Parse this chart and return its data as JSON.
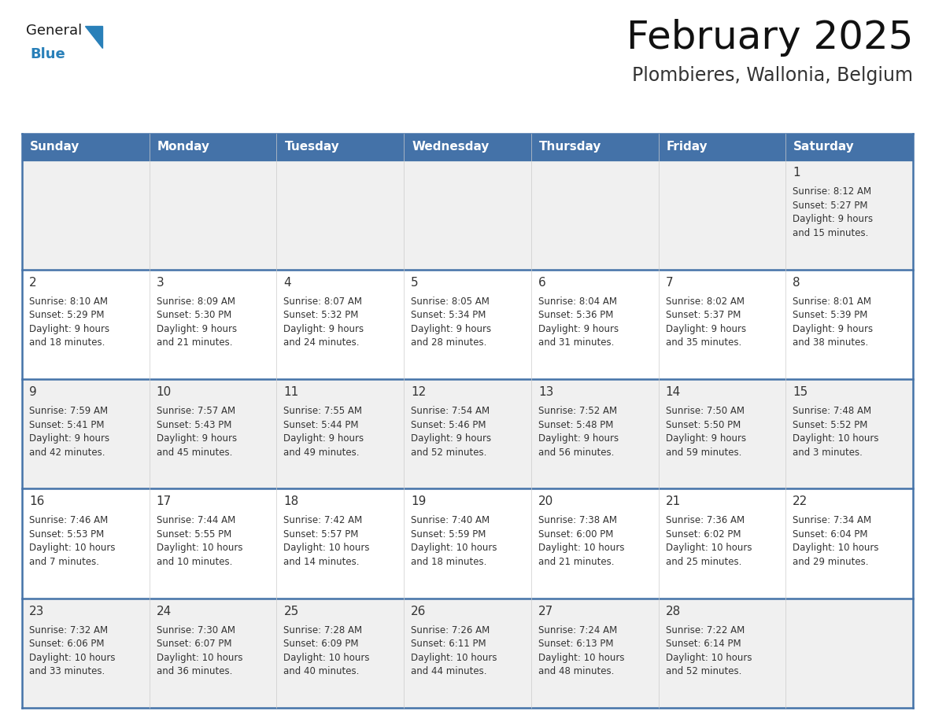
{
  "title": "February 2025",
  "subtitle": "Plombieres, Wallonia, Belgium",
  "header_color": "#4472A8",
  "header_text_color": "#FFFFFF",
  "day_names": [
    "Sunday",
    "Monday",
    "Tuesday",
    "Wednesday",
    "Thursday",
    "Friday",
    "Saturday"
  ],
  "background_color": "#FFFFFF",
  "cell_bg_even": "#F0F0F0",
  "cell_bg_odd": "#FFFFFF",
  "border_color": "#4472A8",
  "thin_line_color": "#4472A8",
  "text_color": "#333333",
  "days": [
    {
      "day": 1,
      "col": 6,
      "row": 0,
      "sunrise": "8:12 AM",
      "sunset": "5:27 PM",
      "daylight": "9 hours\nand 15 minutes."
    },
    {
      "day": 2,
      "col": 0,
      "row": 1,
      "sunrise": "8:10 AM",
      "sunset": "5:29 PM",
      "daylight": "9 hours\nand 18 minutes."
    },
    {
      "day": 3,
      "col": 1,
      "row": 1,
      "sunrise": "8:09 AM",
      "sunset": "5:30 PM",
      "daylight": "9 hours\nand 21 minutes."
    },
    {
      "day": 4,
      "col": 2,
      "row": 1,
      "sunrise": "8:07 AM",
      "sunset": "5:32 PM",
      "daylight": "9 hours\nand 24 minutes."
    },
    {
      "day": 5,
      "col": 3,
      "row": 1,
      "sunrise": "8:05 AM",
      "sunset": "5:34 PM",
      "daylight": "9 hours\nand 28 minutes."
    },
    {
      "day": 6,
      "col": 4,
      "row": 1,
      "sunrise": "8:04 AM",
      "sunset": "5:36 PM",
      "daylight": "9 hours\nand 31 minutes."
    },
    {
      "day": 7,
      "col": 5,
      "row": 1,
      "sunrise": "8:02 AM",
      "sunset": "5:37 PM",
      "daylight": "9 hours\nand 35 minutes."
    },
    {
      "day": 8,
      "col": 6,
      "row": 1,
      "sunrise": "8:01 AM",
      "sunset": "5:39 PM",
      "daylight": "9 hours\nand 38 minutes."
    },
    {
      "day": 9,
      "col": 0,
      "row": 2,
      "sunrise": "7:59 AM",
      "sunset": "5:41 PM",
      "daylight": "9 hours\nand 42 minutes."
    },
    {
      "day": 10,
      "col": 1,
      "row": 2,
      "sunrise": "7:57 AM",
      "sunset": "5:43 PM",
      "daylight": "9 hours\nand 45 minutes."
    },
    {
      "day": 11,
      "col": 2,
      "row": 2,
      "sunrise": "7:55 AM",
      "sunset": "5:44 PM",
      "daylight": "9 hours\nand 49 minutes."
    },
    {
      "day": 12,
      "col": 3,
      "row": 2,
      "sunrise": "7:54 AM",
      "sunset": "5:46 PM",
      "daylight": "9 hours\nand 52 minutes."
    },
    {
      "day": 13,
      "col": 4,
      "row": 2,
      "sunrise": "7:52 AM",
      "sunset": "5:48 PM",
      "daylight": "9 hours\nand 56 minutes."
    },
    {
      "day": 14,
      "col": 5,
      "row": 2,
      "sunrise": "7:50 AM",
      "sunset": "5:50 PM",
      "daylight": "9 hours\nand 59 minutes."
    },
    {
      "day": 15,
      "col": 6,
      "row": 2,
      "sunrise": "7:48 AM",
      "sunset": "5:52 PM",
      "daylight": "10 hours\nand 3 minutes."
    },
    {
      "day": 16,
      "col": 0,
      "row": 3,
      "sunrise": "7:46 AM",
      "sunset": "5:53 PM",
      "daylight": "10 hours\nand 7 minutes."
    },
    {
      "day": 17,
      "col": 1,
      "row": 3,
      "sunrise": "7:44 AM",
      "sunset": "5:55 PM",
      "daylight": "10 hours\nand 10 minutes."
    },
    {
      "day": 18,
      "col": 2,
      "row": 3,
      "sunrise": "7:42 AM",
      "sunset": "5:57 PM",
      "daylight": "10 hours\nand 14 minutes."
    },
    {
      "day": 19,
      "col": 3,
      "row": 3,
      "sunrise": "7:40 AM",
      "sunset": "5:59 PM",
      "daylight": "10 hours\nand 18 minutes."
    },
    {
      "day": 20,
      "col": 4,
      "row": 3,
      "sunrise": "7:38 AM",
      "sunset": "6:00 PM",
      "daylight": "10 hours\nand 21 minutes."
    },
    {
      "day": 21,
      "col": 5,
      "row": 3,
      "sunrise": "7:36 AM",
      "sunset": "6:02 PM",
      "daylight": "10 hours\nand 25 minutes."
    },
    {
      "day": 22,
      "col": 6,
      "row": 3,
      "sunrise": "7:34 AM",
      "sunset": "6:04 PM",
      "daylight": "10 hours\nand 29 minutes."
    },
    {
      "day": 23,
      "col": 0,
      "row": 4,
      "sunrise": "7:32 AM",
      "sunset": "6:06 PM",
      "daylight": "10 hours\nand 33 minutes."
    },
    {
      "day": 24,
      "col": 1,
      "row": 4,
      "sunrise": "7:30 AM",
      "sunset": "6:07 PM",
      "daylight": "10 hours\nand 36 minutes."
    },
    {
      "day": 25,
      "col": 2,
      "row": 4,
      "sunrise": "7:28 AM",
      "sunset": "6:09 PM",
      "daylight": "10 hours\nand 40 minutes."
    },
    {
      "day": 26,
      "col": 3,
      "row": 4,
      "sunrise": "7:26 AM",
      "sunset": "6:11 PM",
      "daylight": "10 hours\nand 44 minutes."
    },
    {
      "day": 27,
      "col": 4,
      "row": 4,
      "sunrise": "7:24 AM",
      "sunset": "6:13 PM",
      "daylight": "10 hours\nand 48 minutes."
    },
    {
      "day": 28,
      "col": 5,
      "row": 4,
      "sunrise": "7:22 AM",
      "sunset": "6:14 PM",
      "daylight": "10 hours\nand 52 minutes."
    }
  ],
  "logo_general_color": "#1a1a1a",
  "logo_blue_color": "#2980B9",
  "num_rows": 5,
  "title_fontsize": 36,
  "subtitle_fontsize": 17,
  "header_fontsize": 11,
  "day_num_fontsize": 11,
  "cell_text_fontsize": 8.5
}
